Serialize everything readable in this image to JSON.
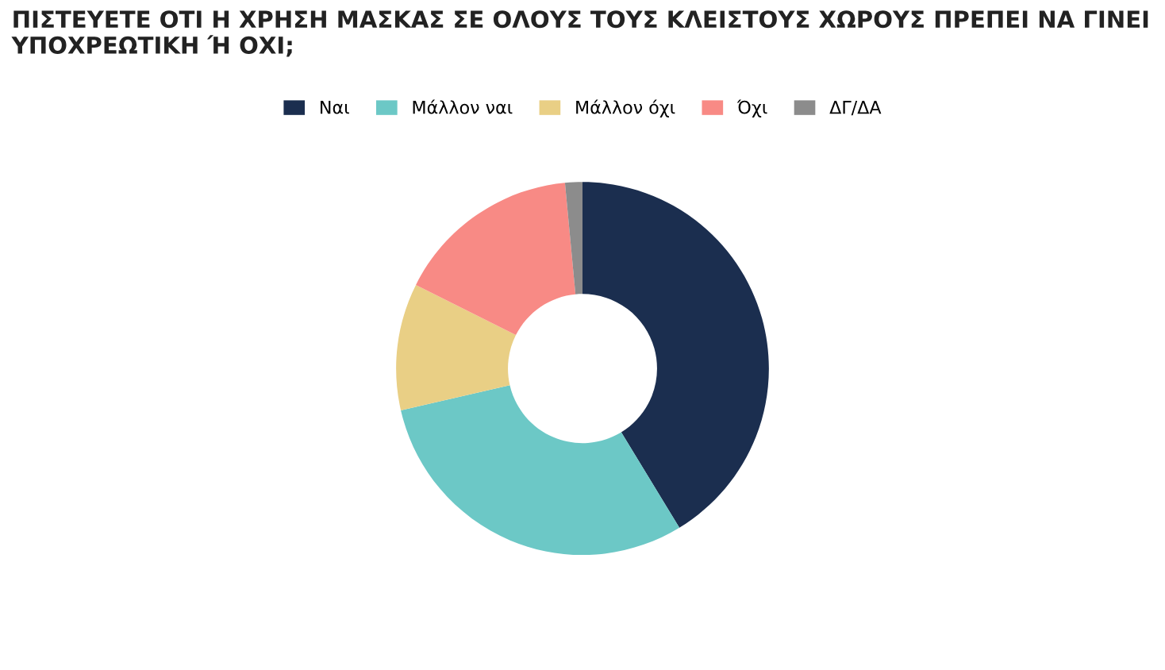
{
  "chart_data": {
    "type": "donut",
    "title": "ΠΙΣΤΕΥΕΤΕ ΟΤΙ Η ΧΡΗΣΗ ΜΑΣΚΑΣ ΣΕ ΟΛΟΥΣ ΤΟΥΣ ΚΛΕΙΣΤΟΥΣ ΧΩΡΟΥΣ ΠΡΕΠΕΙ ΝΑ ΓΙΝΕΙ ΥΠΟΧΡΕΩΤΙΚΗ Ή ΟΧΙ;",
    "categories": [
      "Ναι",
      "Μάλλον ναι",
      "Μάλλον όχι",
      "Όχι",
      "ΔΓ/ΔΑ"
    ],
    "values": [
      41.3,
      30.1,
      11.0,
      16.1,
      1.5
    ],
    "colors": [
      "#1b2e4f",
      "#6cc8c6",
      "#e9cf85",
      "#f88a85",
      "#8c8c8c"
    ],
    "legend": "top"
  }
}
